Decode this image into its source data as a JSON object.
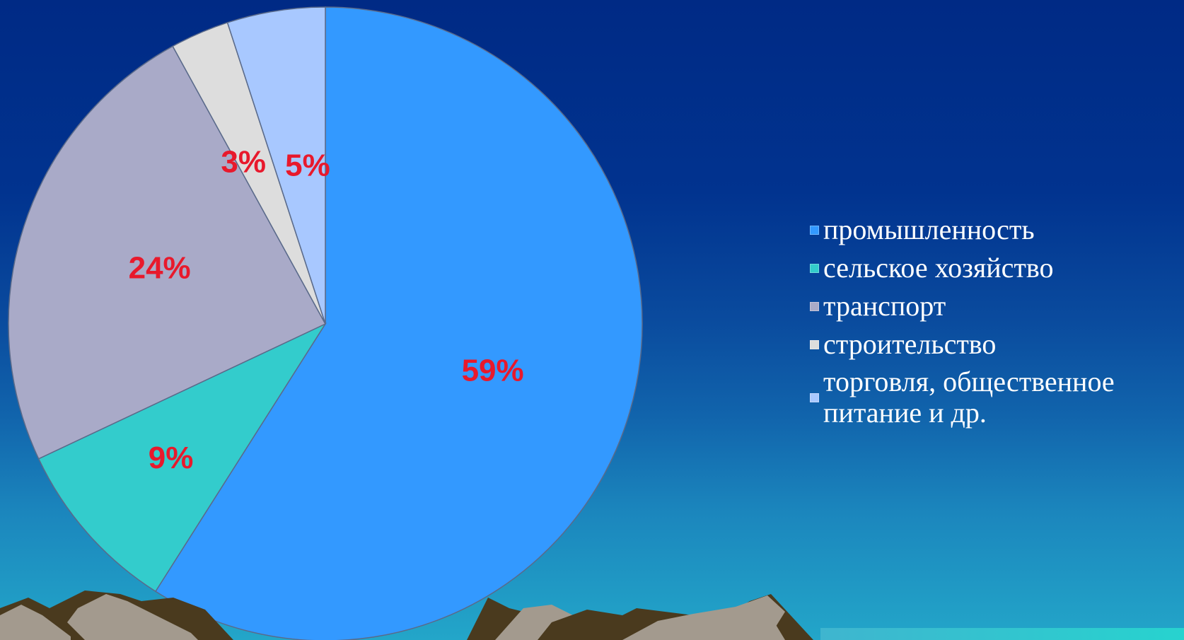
{
  "chart_data": {
    "type": "pie",
    "title": "",
    "start_angle_deg": 0,
    "direction": "clockwise",
    "slices": [
      {
        "name": "промышленность",
        "value": 59,
        "label": "59%",
        "color": "#3399ff"
      },
      {
        "name": "сельское хозяйство",
        "value": 9,
        "label": "9%",
        "color": "#33cccc"
      },
      {
        "name": "транспорт",
        "value": 24,
        "label": "24%",
        "color": "#a9aac8"
      },
      {
        "name": "строительство",
        "value": 3,
        "label": "3%",
        "color": "#dddddd"
      },
      {
        "name": "торговля, общественное питание и др.",
        "value": 5,
        "label": "5%",
        "color": "#a8c8ff"
      }
    ],
    "legend_position": "right",
    "label_color": "#e8192c"
  },
  "colors": {
    "background_top": "#002a85",
    "background_bottom": "#23a6c9",
    "mountain_face": "#a39a8e",
    "mountain_shadow": "#4a3a1e"
  }
}
